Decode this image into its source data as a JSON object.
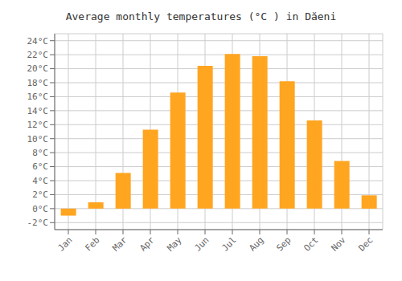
{
  "chart_data": {
    "type": "bar",
    "title": "Average monthly temperatures (°C ) in Dăeni",
    "categories": [
      "Jan",
      "Feb",
      "Mar",
      "Apr",
      "May",
      "Jun",
      "Jul",
      "Aug",
      "Sep",
      "Oct",
      "Nov",
      "Dec"
    ],
    "values": [
      -1.0,
      0.9,
      5.1,
      11.3,
      16.6,
      20.4,
      22.1,
      21.8,
      18.2,
      12.6,
      6.8,
      1.9
    ],
    "color": "#FFA520",
    "ylim": [
      -3,
      25
    ],
    "yticks": [
      {
        "value": -2,
        "label": "-2°C"
      },
      {
        "value": 0,
        "label": "0°C"
      },
      {
        "value": 2,
        "label": "2°C"
      },
      {
        "value": 4,
        "label": "4°C"
      },
      {
        "value": 6,
        "label": "6°C"
      },
      {
        "value": 8,
        "label": "8°C"
      },
      {
        "value": 10,
        "label": "10°C"
      },
      {
        "value": 12,
        "label": "12°C"
      },
      {
        "value": 14,
        "label": "14°C"
      },
      {
        "value": 16,
        "label": "16°C"
      },
      {
        "value": 18,
        "label": "18°C"
      },
      {
        "value": 20,
        "label": "20°C"
      },
      {
        "value": 22,
        "label": "22°C"
      },
      {
        "value": 24,
        "label": "24°C"
      }
    ],
    "grid": true
  }
}
